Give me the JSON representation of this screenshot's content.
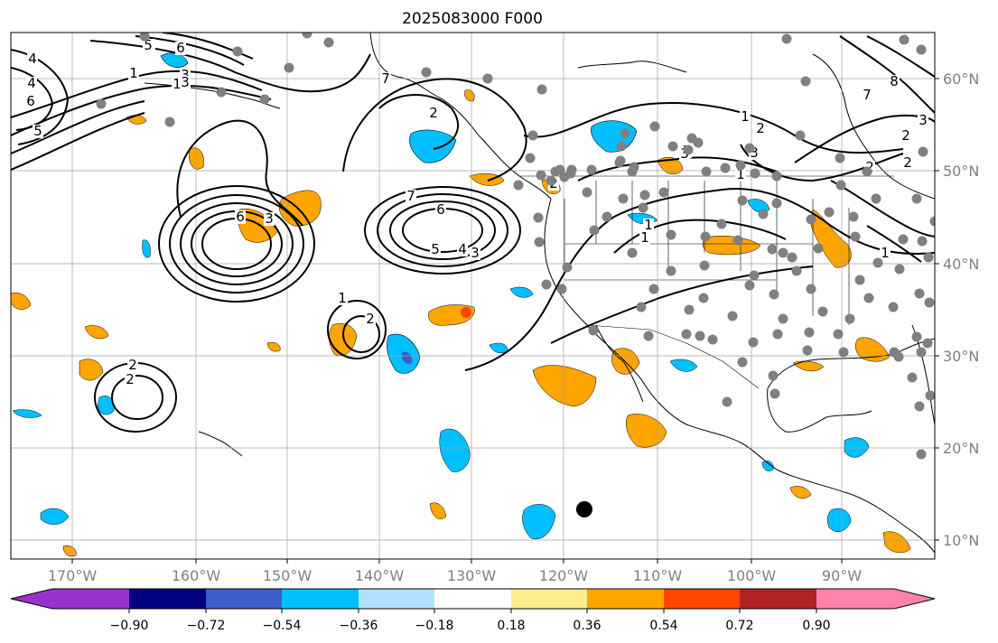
{
  "title": "2025083000 F000",
  "map": {
    "longitude_labels": [
      "170°W",
      "160°W",
      "150°W",
      "140°W",
      "130°W",
      "120°W",
      "110°W",
      "100°W",
      "90°W"
    ],
    "latitude_labels": [
      "60°N",
      "50°N",
      "40°N",
      "30°N",
      "20°N",
      "10°N"
    ],
    "contour_labels": [
      "4",
      "4",
      "6",
      "5",
      "6",
      "5",
      "3",
      "1",
      "1",
      "3",
      "7",
      "2",
      "7",
      "6",
      "5",
      "4",
      "3",
      "2",
      "6",
      "3",
      "1",
      "2",
      "2",
      "1",
      "1",
      "2",
      "3",
      "1",
      "1",
      "1",
      "1",
      "2",
      "2",
      "3",
      "2",
      "5",
      "7",
      "2",
      "8",
      "3"
    ],
    "marker_colors": {
      "station": "#808080",
      "center_marker": "#000000",
      "contour": "#000000"
    }
  },
  "colorbar": {
    "tick_labels": [
      "−0.90",
      "−0.72",
      "−0.54",
      "−0.36",
      "−0.18",
      "0.18",
      "0.36",
      "0.54",
      "0.72",
      "0.90"
    ],
    "colors": [
      "#9932cc",
      "#000080",
      "#3a5fcd",
      "#00bfff",
      "#b0e2ff",
      "#ffffff",
      "#ffec8b",
      "#ffa500",
      "#ff4500",
      "#b22222",
      "#ff82ab"
    ]
  }
}
